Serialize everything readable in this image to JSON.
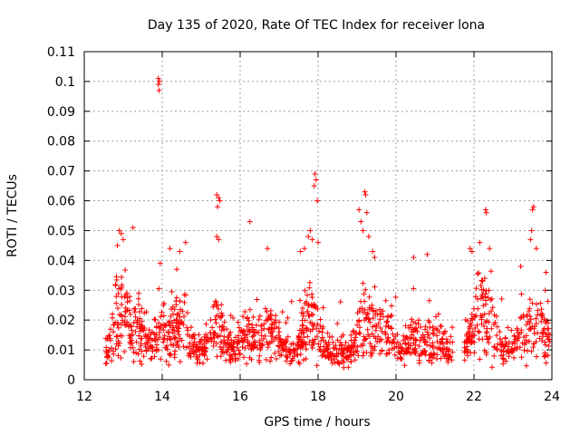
{
  "chart_data": {
    "type": "scatter",
    "title": "Day 135 of 2020, Rate Of TEC Index for receiver lona",
    "xlabel": "GPS time / hours",
    "ylabel": "ROTI / TECUs",
    "xlim": [
      12,
      24
    ],
    "ylim": [
      0,
      0.11
    ],
    "x_ticks": [
      "12",
      "14",
      "16",
      "18",
      "20",
      "22",
      "24"
    ],
    "y_ticks": [
      "0",
      "0.01",
      "0.02",
      "0.03",
      "0.04",
      "0.05",
      "0.06",
      "0.07",
      "0.08",
      "0.09",
      "0.1",
      "0.11"
    ],
    "grid": true,
    "marker": "plus",
    "color": "#ff0000",
    "points": [
      [
        13.9,
        0.101
      ],
      [
        13.9,
        0.099
      ],
      [
        13.92,
        0.097
      ],
      [
        13.93,
        0.1
      ],
      [
        12.9,
        0.05
      ],
      [
        12.95,
        0.049
      ],
      [
        13.0,
        0.047
      ],
      [
        12.85,
        0.045
      ],
      [
        13.25,
        0.051
      ],
      [
        15.4,
        0.062
      ],
      [
        15.45,
        0.061
      ],
      [
        15.48,
        0.06
      ],
      [
        15.42,
        0.058
      ],
      [
        15.4,
        0.048
      ],
      [
        15.45,
        0.047
      ],
      [
        16.25,
        0.053
      ],
      [
        16.7,
        0.044
      ],
      [
        14.2,
        0.044
      ],
      [
        14.6,
        0.046
      ],
      [
        14.45,
        0.043
      ],
      [
        13.95,
        0.039
      ],
      [
        17.8,
        0.05
      ],
      [
        17.75,
        0.048
      ],
      [
        17.85,
        0.047
      ],
      [
        17.9,
        0.065
      ],
      [
        17.92,
        0.069
      ],
      [
        17.95,
        0.067
      ],
      [
        17.98,
        0.06
      ],
      [
        18.0,
        0.046
      ],
      [
        17.65,
        0.044
      ],
      [
        17.55,
        0.043
      ],
      [
        19.05,
        0.057
      ],
      [
        19.1,
        0.053
      ],
      [
        19.15,
        0.05
      ],
      [
        19.2,
        0.063
      ],
      [
        19.22,
        0.062
      ],
      [
        19.25,
        0.056
      ],
      [
        19.3,
        0.048
      ],
      [
        19.4,
        0.043
      ],
      [
        19.45,
        0.041
      ],
      [
        20.45,
        0.041
      ],
      [
        20.8,
        0.042
      ],
      [
        21.9,
        0.044
      ],
      [
        21.95,
        0.043
      ],
      [
        22.15,
        0.046
      ],
      [
        22.3,
        0.057
      ],
      [
        22.32,
        0.056
      ],
      [
        22.4,
        0.044
      ],
      [
        23.5,
        0.057
      ],
      [
        23.53,
        0.058
      ],
      [
        23.48,
        0.05
      ],
      [
        23.45,
        0.047
      ],
      [
        23.6,
        0.044
      ],
      [
        23.2,
        0.038
      ],
      [
        23.85,
        0.036
      ]
    ]
  }
}
